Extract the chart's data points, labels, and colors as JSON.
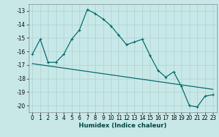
{
  "xlabel": "Humidex (Indice chaleur)",
  "background_color": "#c8e8e8",
  "line_color": "#006666",
  "xlim": [
    -0.5,
    23.5
  ],
  "ylim": [
    -20.5,
    -12.5
  ],
  "yticks": [
    -20,
    -19,
    -18,
    -17,
    -16,
    -15,
    -14,
    -13
  ],
  "xticks": [
    0,
    1,
    2,
    3,
    4,
    5,
    6,
    7,
    8,
    9,
    10,
    11,
    12,
    13,
    14,
    15,
    16,
    17,
    18,
    19,
    20,
    21,
    22,
    23
  ],
  "curve1_x": [
    0,
    1,
    2,
    3,
    4,
    5,
    6,
    7,
    8,
    9,
    10,
    11,
    12,
    13,
    14,
    15,
    16,
    17,
    18,
    19,
    20,
    21,
    22,
    23
  ],
  "curve1_y": [
    -16.2,
    -15.1,
    -16.8,
    -16.8,
    -16.2,
    -15.1,
    -14.4,
    -12.9,
    -13.2,
    -13.6,
    -14.1,
    -14.8,
    -15.5,
    -15.3,
    -15.1,
    -16.3,
    -17.4,
    -17.9,
    -17.5,
    -18.6,
    -20.0,
    -20.1,
    -19.3,
    -19.2
  ],
  "curve2_x": [
    0,
    23
  ],
  "curve2_y": [
    -16.9,
    -18.8
  ],
  "tick_fontsize": 5.5,
  "xlabel_fontsize": 6.5
}
